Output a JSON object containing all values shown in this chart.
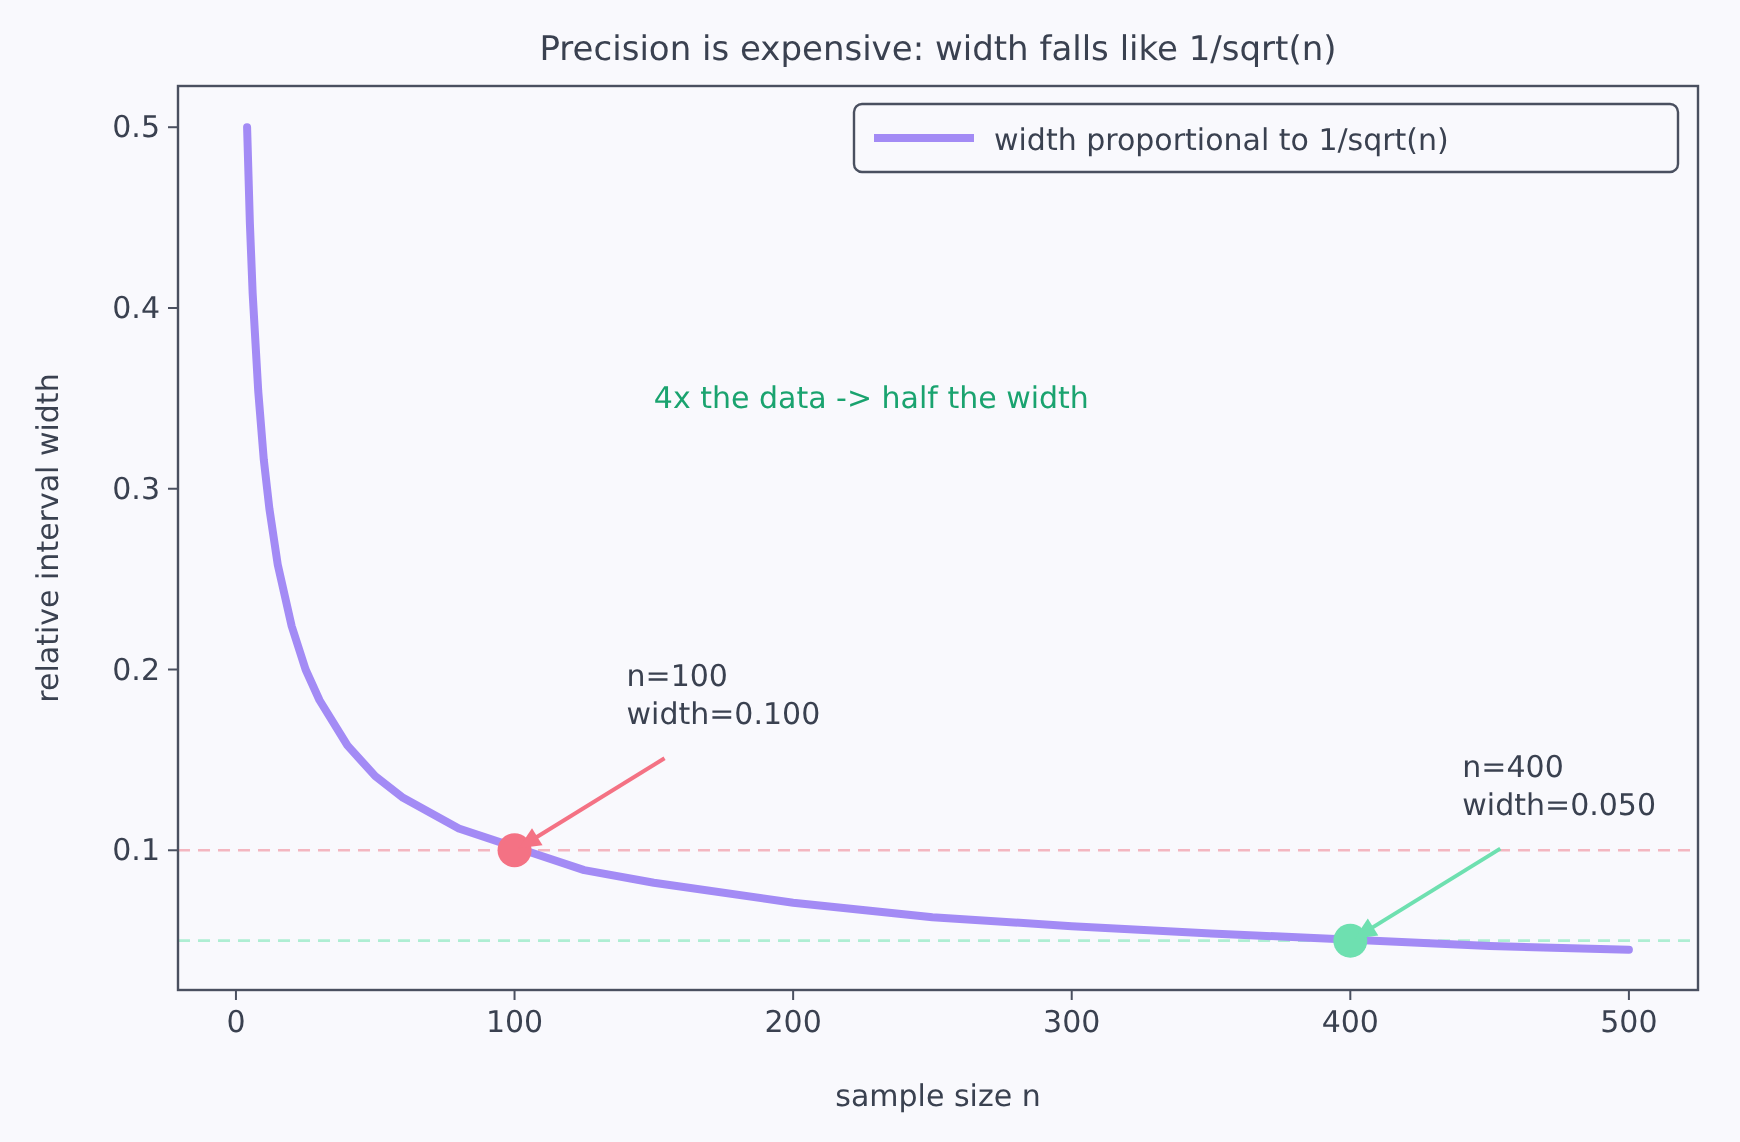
{
  "chart_data": {
    "type": "line",
    "title": "Precision is expensive: width falls like 1/sqrt(n)",
    "xlabel": "sample size  n",
    "ylabel": "relative interval width",
    "xlim": [
      -20.8,
      524.8
    ],
    "ylim": [
      0.0227,
      0.5228
    ],
    "xticks": [
      0,
      100,
      200,
      300,
      400,
      500
    ],
    "yticks": [
      0.1,
      0.2,
      0.3,
      0.4,
      0.5
    ],
    "grid": false,
    "legend": "top right",
    "series": [
      {
        "name": "width proportional to 1/sqrt(n)",
        "color": "#a38bf5",
        "marker": "none",
        "line_style": "solid",
        "x": [
          4,
          5,
          6,
          8,
          10,
          12,
          15,
          20,
          25,
          30,
          40,
          50,
          60,
          80,
          125,
          150,
          200,
          250,
          300,
          350,
          450,
          500
        ],
        "values": [
          0.5,
          0.447,
          0.408,
          0.354,
          0.316,
          0.289,
          0.258,
          0.224,
          0.2,
          0.183,
          0.158,
          0.141,
          0.129,
          0.112,
          0.089,
          0.082,
          0.071,
          0.063,
          0.058,
          0.054,
          0.047,
          0.045
        ]
      },
      {
        "type": "scatter",
        "color": "#f47284",
        "marker": "circle",
        "x": [
          100
        ],
        "values": [
          0.1
        ]
      },
      {
        "type": "scatter",
        "color": "#6ee0b0",
        "marker": "circle",
        "x": [
          400
        ],
        "values": [
          0.05
        ]
      }
    ],
    "ref_lines": [
      {
        "axis": "y",
        "value": 0.1,
        "color": "#f4b6c0",
        "line_style": "dashed"
      },
      {
        "axis": "y",
        "value": 0.05,
        "color": "#aeeed3",
        "line_style": "dashed"
      }
    ],
    "annotations": [
      {
        "text": "n=100\nwidth=0.100",
        "x": 100,
        "y": 0.1
      },
      {
        "text": "n=400\nwidth=0.050",
        "x": 400,
        "y": 0.05
      },
      "4x the data -> half the width"
    ]
  }
}
